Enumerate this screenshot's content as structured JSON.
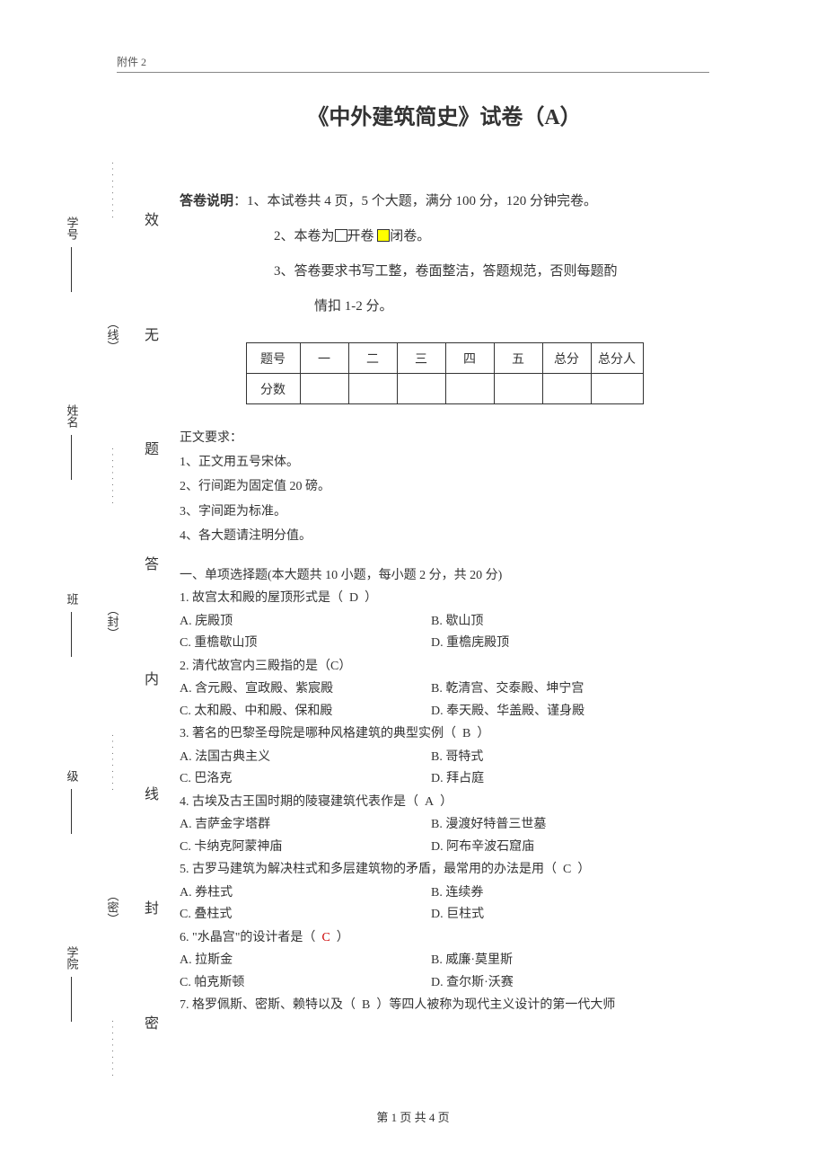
{
  "attachment": "附件 2",
  "title": "《中外建筑简史》试卷（A）",
  "instructions": {
    "lead": "答卷说明",
    "line1": "：1、本试卷共 4 页，5 个大题，满分 100 分，120 分钟完卷。",
    "line2a": "2、本卷为",
    "open_label": "开卷 ",
    "close_label": "闭卷。",
    "line3": "3、答卷要求书写工整，卷面整洁，答题规范，否则每题酌",
    "line3b": "情扣 1-2 分。"
  },
  "score_table": {
    "row_label_1": "题号",
    "row_label_2": "分数",
    "cols": [
      "一",
      "二",
      "三",
      "四",
      "五",
      "总分",
      "总分人"
    ]
  },
  "body_req": {
    "title": "正文要求：",
    "items": [
      "1、正文用五号宋体。",
      "2、行间距为固定值 20 磅。",
      "3、字间距为标准。",
      "4、各大题请注明分值。"
    ]
  },
  "section1_heading": "一、单项选择题(本大题共 10 小题，每小题 2 分，共 20 分)",
  "questions": [
    {
      "stem": "1. 故宫太和殿的屋顶形式是（",
      "ans": "D",
      "stem_end": "）",
      "optA": "A. 庑殿顶",
      "optB": "B. 歇山顶",
      "optC": "C. 重檐歇山顶",
      "optD": "D. 重檐庑殿顶"
    },
    {
      "stem": "2. 清代故宫内三殿指的是（C）",
      "optA": "A. 含元殿、宣政殿、紫宸殿",
      "optB": "B. 乾清宫、交泰殿、坤宁宫",
      "optC": "C. 太和殿、中和殿、保和殿",
      "optD": "D. 奉天殿、华盖殿、谨身殿"
    },
    {
      "stem": "3. 著名的巴黎圣母院是哪种风格建筑的典型实例（",
      "ans": "B",
      "stem_end": "）",
      "optA": "A. 法国古典主义",
      "optB": "B. 哥特式",
      "optC": "C. 巴洛克",
      "optD": "D. 拜占庭"
    },
    {
      "stem": "4. 古埃及古王国时期的陵寝建筑代表作是（",
      "ans": "A",
      "stem_end": "）",
      "optA": "A. 吉萨金字塔群",
      "optB": "B. 漫渡好特普三世墓",
      "optC": "C. 卡纳克阿蒙神庙",
      "optD": "D. 阿布辛波石窟庙"
    },
    {
      "stem": "5.  古罗马建筑为解决柱式和多层建筑物的矛盾，最常用的办法是用（",
      "ans": "C",
      "stem_end": "）",
      "optA": "A. 券柱式",
      "optB": "B. 连续券",
      "optC": "C. 叠柱式",
      "optD": "D. 巨柱式"
    },
    {
      "stem": "6.  \"水晶宫\"的设计者是（",
      "ans": "C",
      "ans_red": true,
      "stem_end": "）",
      "optA": "A. 拉斯金",
      "optB": "B. 威廉·莫里斯",
      "optC": "C. 帕克斯顿",
      "optD": "D. 查尔斯·沃赛"
    },
    {
      "stem": "7. 格罗佩斯、密斯、赖特以及（",
      "ans": "B",
      "stem_end": "）等四人被称为现代主义设计的第一代大师"
    }
  ],
  "footer": "第 1 页 共 4 页",
  "binding": {
    "outer": [
      "学院",
      "级",
      "班",
      "姓名",
      "学号"
    ],
    "mid": [
      "（密）",
      "（封）",
      "（线）"
    ],
    "inner": [
      "密",
      "封",
      "线",
      "内",
      "答",
      "题",
      "无",
      "效"
    ]
  },
  "colors": {
    "text": "#333333",
    "highlight": "#ffff00",
    "red": "#cc0000",
    "border": "#333333",
    "hr": "#888888"
  }
}
